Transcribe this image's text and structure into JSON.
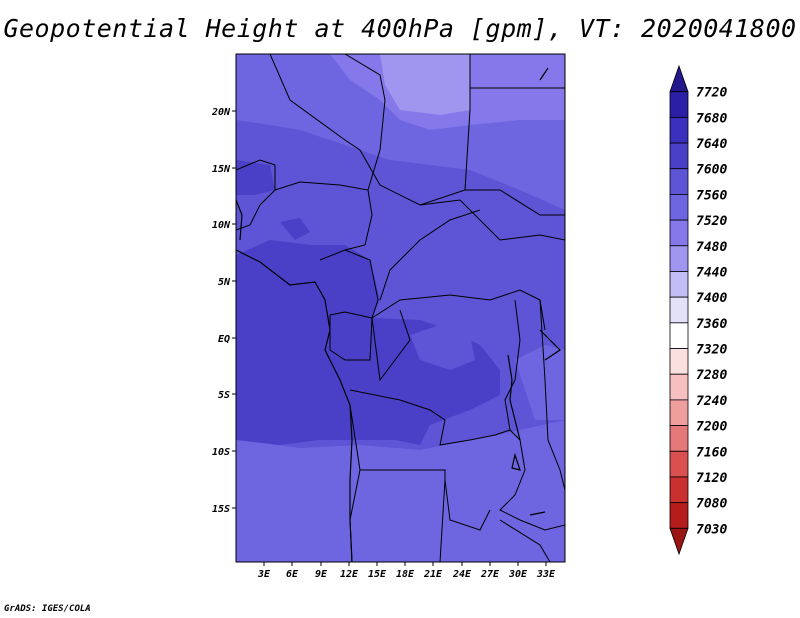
{
  "title": "Geopotential Height at 400hPa [gpm], VT: 2020041800",
  "footer": "GrADS: IGES/COLA",
  "map": {
    "lon_labels": [
      "3E",
      "6E",
      "9E",
      "12E",
      "15E",
      "18E",
      "21E",
      "24E",
      "27E",
      "30E",
      "33E"
    ],
    "lat_labels": [
      "20N",
      "15N",
      "10N",
      "5N",
      "EQ",
      "5S",
      "10S",
      "15S"
    ]
  },
  "colorbar": {
    "levels": [
      "7720",
      "7680",
      "7640",
      "7600",
      "7560",
      "7520",
      "7480",
      "7440",
      "7400",
      "7360",
      "7320",
      "7280",
      "7240",
      "7200",
      "7160",
      "7120",
      "7080",
      "7030"
    ],
    "colors": [
      "#23198c",
      "#2b1fa6",
      "#3a30bb",
      "#4a40c8",
      "#5d55d6",
      "#6e66e0",
      "#8478ea",
      "#9f96f0",
      "#c3bdf6",
      "#e4e1fb",
      "#ffffff",
      "#fbe0e0",
      "#f6c0c0",
      "#ef9e9e",
      "#e57878",
      "#d85050",
      "#cb3030",
      "#b51c1c",
      "#9c1515"
    ]
  },
  "colors": {
    "field_low": "#4a40c8",
    "field_mid": "#5d55d6",
    "field_high": "#6e66e0",
    "field_higher": "#8478ea",
    "field_highest": "#9f96f0"
  }
}
